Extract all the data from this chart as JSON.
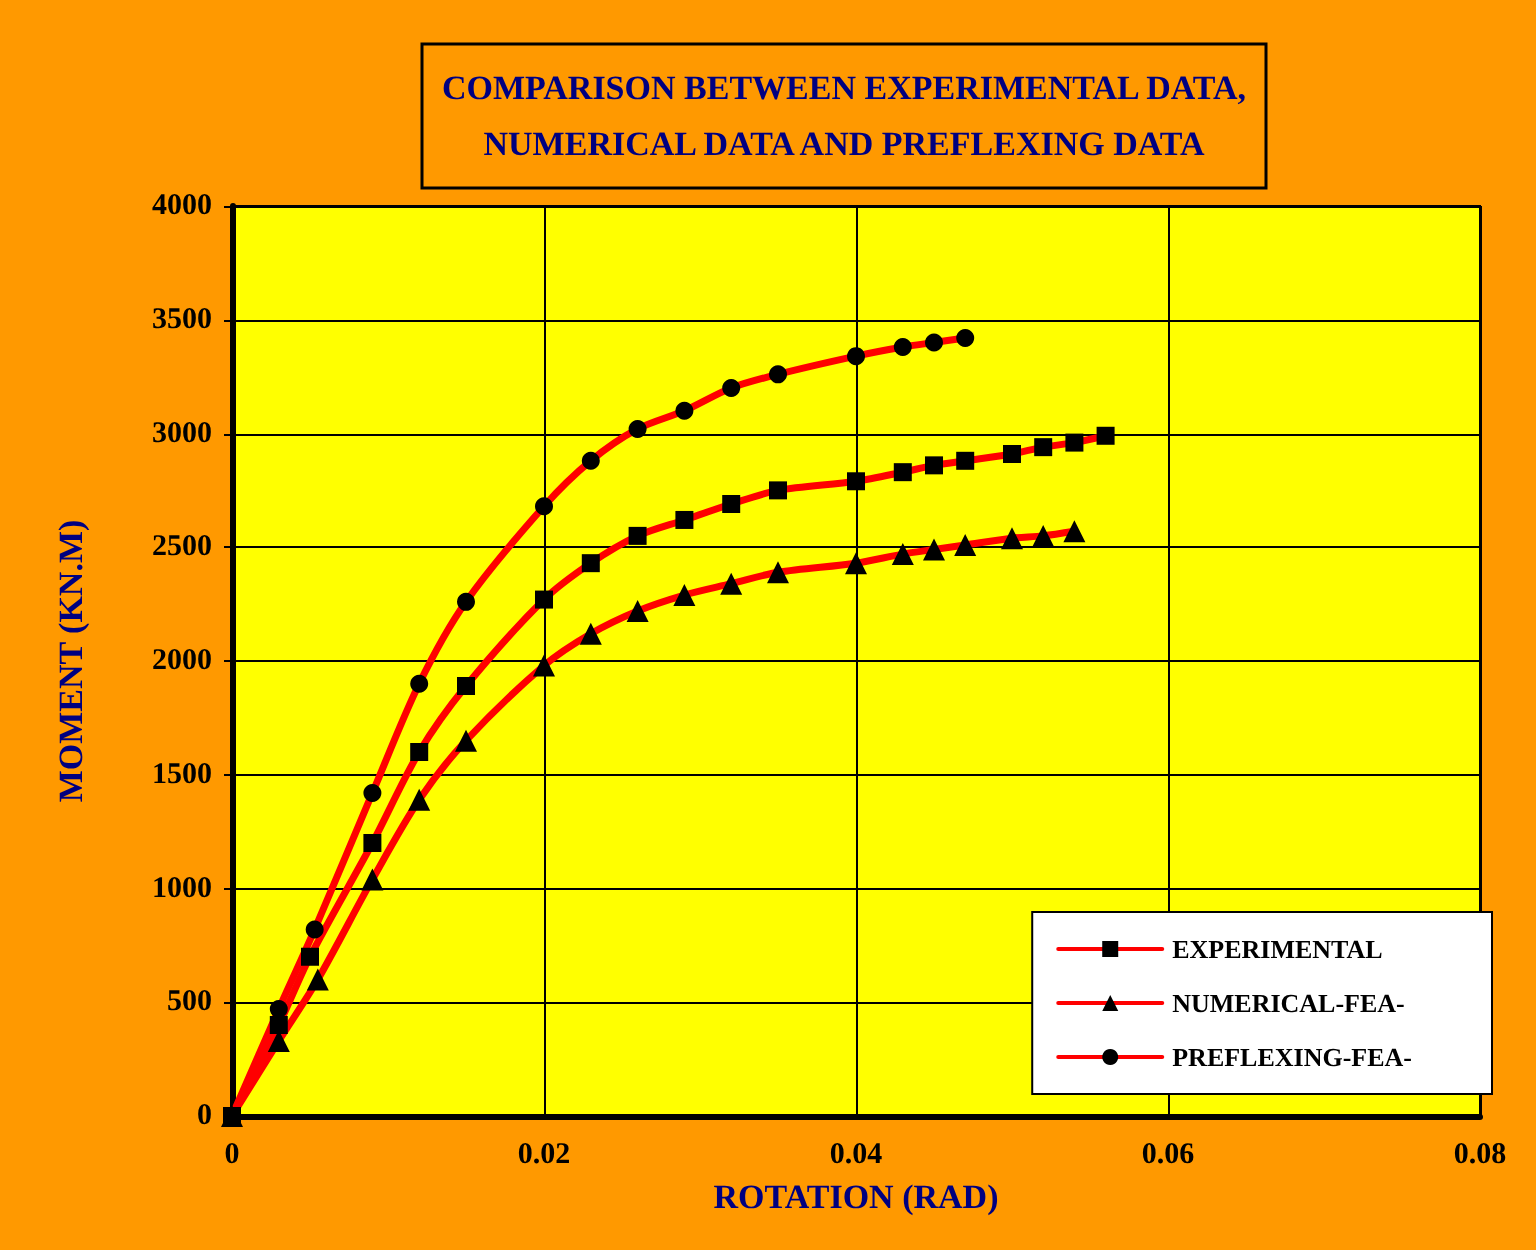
{
  "chart_data": {
    "type": "line",
    "title": "COMPARISON BETWEEN EXPERIMENTAL DATA,\nNUMERICAL DATA AND PREFLEXING DATA",
    "xlabel": "ROTATION (RAD)",
    "ylabel": "MOMENT (KN.M)",
    "xlim": [
      0,
      0.08
    ],
    "xticks": [
      0,
      0.02,
      0.04,
      0.06,
      0.08
    ],
    "ylim": [
      0,
      4000
    ],
    "yticks": [
      0,
      500,
      1000,
      1500,
      2000,
      2500,
      3000,
      3500,
      4000
    ],
    "grid": true,
    "legend": "bottom right",
    "series": [
      {
        "name": "EXPERIMENTAL",
        "color": "#ff0000",
        "marker": "square",
        "x": [
          0,
          0.003,
          0.005,
          0.009,
          0.012,
          0.015,
          0.02,
          0.023,
          0.026,
          0.029,
          0.032,
          0.035,
          0.04,
          0.043,
          0.045,
          0.047,
          0.05,
          0.052,
          0.054,
          0.056
        ],
        "values": [
          0,
          400,
          700,
          1200,
          1600,
          1890,
          2270,
          2430,
          2550,
          2620,
          2690,
          2750,
          2790,
          2830,
          2860,
          2880,
          2910,
          2940,
          2960,
          2990
        ]
      },
      {
        "name": "NUMERICAL-FEA-",
        "color": "#ff0000",
        "marker": "triangle",
        "x": [
          0,
          0.003,
          0.0055,
          0.009,
          0.012,
          0.015,
          0.02,
          0.023,
          0.026,
          0.029,
          0.032,
          0.035,
          0.04,
          0.043,
          0.045,
          0.047,
          0.05,
          0.052,
          0.054
        ],
        "values": [
          0,
          330,
          600,
          1040,
          1390,
          1650,
          1980,
          2120,
          2220,
          2290,
          2340,
          2390,
          2430,
          2470,
          2490,
          2510,
          2540,
          2550,
          2570
        ]
      },
      {
        "name": "PREFLEXING-FEA-",
        "color": "#ff0000",
        "marker": "circle",
        "x": [
          0,
          0.003,
          0.0053,
          0.009,
          0.012,
          0.015,
          0.02,
          0.023,
          0.026,
          0.029,
          0.032,
          0.035,
          0.04,
          0.043,
          0.045,
          0.047
        ],
        "values": [
          0,
          470,
          820,
          1420,
          1900,
          2260,
          2680,
          2880,
          3020,
          3100,
          3200,
          3260,
          3340,
          3380,
          3400,
          3420
        ]
      }
    ]
  }
}
